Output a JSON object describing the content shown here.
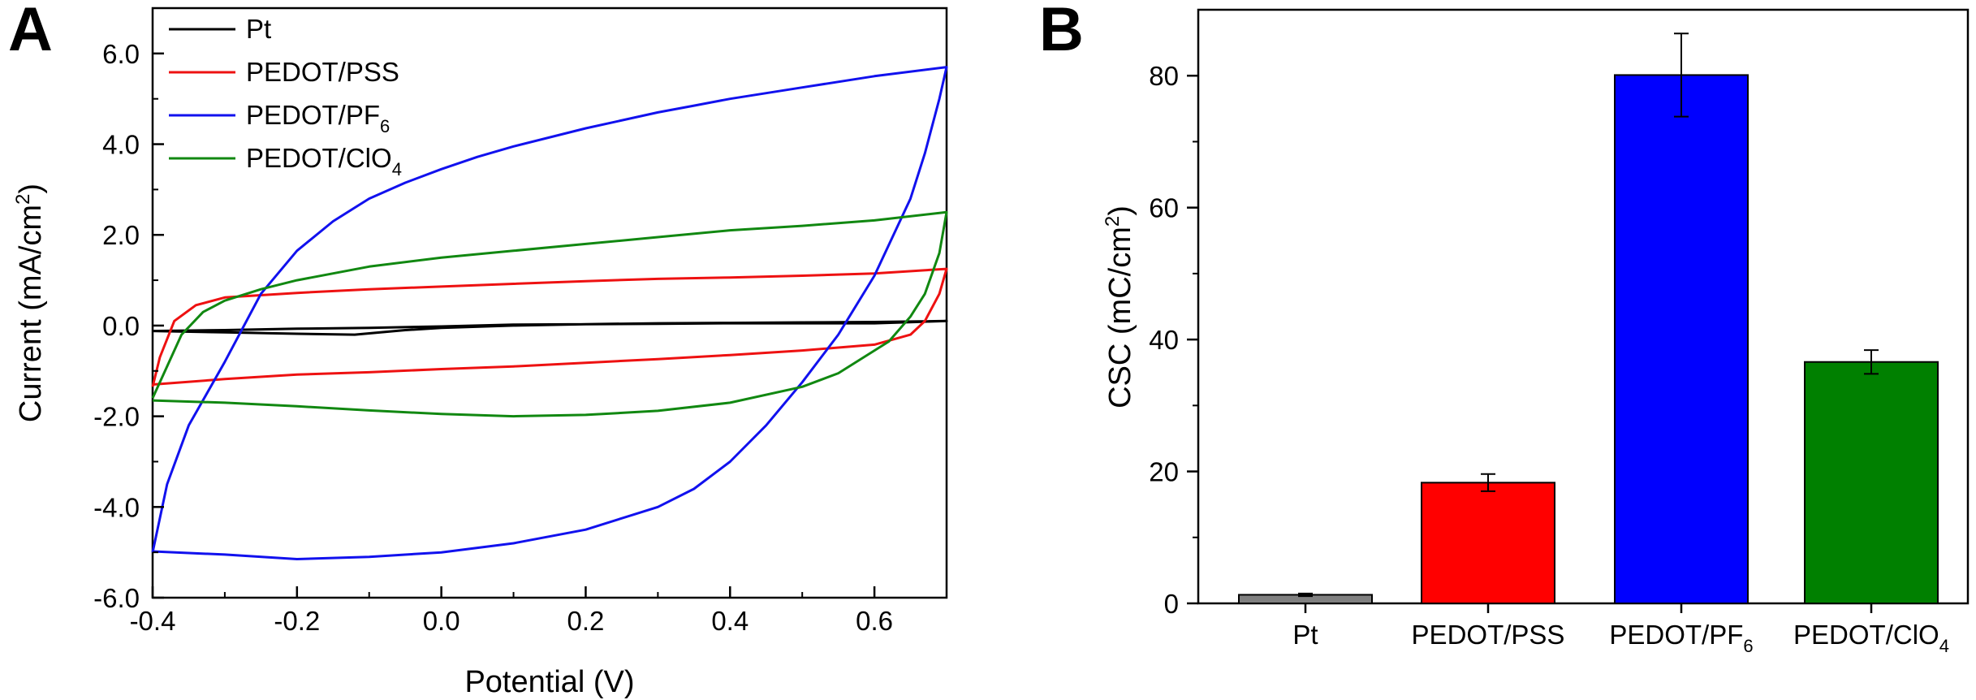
{
  "panels": {
    "a": {
      "letter": "A"
    },
    "b": {
      "letter": "B"
    }
  },
  "chart_data": [
    {
      "type": "line",
      "title": "",
      "xlabel": "Potential (V)",
      "ylabel": {
        "main": "Current (mA/cm",
        "sup": "2",
        "end": ")"
      },
      "xlim": [
        -0.4,
        0.7
      ],
      "ylim": [
        -6.0,
        7.0
      ],
      "xticks": [
        -0.4,
        -0.2,
        0.0,
        0.2,
        0.4,
        0.6
      ],
      "xtick_labels": [
        "-0.4",
        "-0.2",
        "0.0",
        "0.2",
        "0.4",
        "0.6"
      ],
      "yticks": [
        -6.0,
        -4.0,
        -2.0,
        0.0,
        2.0,
        4.0,
        6.0
      ],
      "ytick_labels": [
        "-6.0",
        "-4.0",
        "-2.0",
        "0.0",
        "2.0",
        "4.0",
        "6.0"
      ],
      "legend_position": "top-left",
      "legend": [
        {
          "key": "pt",
          "label": "Pt",
          "sub": ""
        },
        {
          "key": "pss",
          "label": "PEDOT/PSS",
          "sub": ""
        },
        {
          "key": "pf6",
          "label": "PEDOT/PF",
          "sub": "6"
        },
        {
          "key": "clo4",
          "label": "PEDOT/ClO",
          "sub": "4"
        }
      ],
      "series": [
        {
          "key": "pt",
          "name": "Pt",
          "color": "#000000",
          "points": [
            [
              -0.4,
              -0.12
            ],
            [
              -0.3,
              -0.15
            ],
            [
              -0.2,
              -0.18
            ],
            [
              -0.12,
              -0.2
            ],
            [
              -0.05,
              -0.1
            ],
            [
              0.0,
              -0.05
            ],
            [
              0.1,
              0.0
            ],
            [
              0.2,
              0.03
            ],
            [
              0.3,
              0.05
            ],
            [
              0.4,
              0.06
            ],
            [
              0.5,
              0.07
            ],
            [
              0.6,
              0.08
            ],
            [
              0.7,
              0.1
            ],
            [
              0.6,
              0.05
            ],
            [
              0.5,
              0.05
            ],
            [
              0.4,
              0.05
            ],
            [
              0.3,
              0.04
            ],
            [
              0.2,
              0.03
            ],
            [
              0.1,
              0.02
            ],
            [
              0.0,
              -0.02
            ],
            [
              -0.1,
              -0.05
            ],
            [
              -0.2,
              -0.07
            ],
            [
              -0.3,
              -0.1
            ],
            [
              -0.4,
              -0.12
            ]
          ]
        },
        {
          "key": "pss",
          "name": "PEDOT/PSS",
          "color": "#ee1111",
          "points": [
            [
              -0.4,
              -1.35
            ],
            [
              -0.39,
              -0.7
            ],
            [
              -0.37,
              0.1
            ],
            [
              -0.34,
              0.45
            ],
            [
              -0.3,
              0.62
            ],
            [
              -0.2,
              0.72
            ],
            [
              -0.1,
              0.8
            ],
            [
              0.0,
              0.86
            ],
            [
              0.1,
              0.92
            ],
            [
              0.2,
              0.98
            ],
            [
              0.3,
              1.03
            ],
            [
              0.4,
              1.06
            ],
            [
              0.5,
              1.1
            ],
            [
              0.6,
              1.15
            ],
            [
              0.7,
              1.25
            ],
            [
              0.69,
              0.7
            ],
            [
              0.67,
              0.1
            ],
            [
              0.65,
              -0.2
            ],
            [
              0.6,
              -0.42
            ],
            [
              0.5,
              -0.55
            ],
            [
              0.4,
              -0.65
            ],
            [
              0.3,
              -0.74
            ],
            [
              0.2,
              -0.82
            ],
            [
              0.1,
              -0.9
            ],
            [
              0.0,
              -0.96
            ],
            [
              -0.1,
              -1.03
            ],
            [
              -0.2,
              -1.08
            ],
            [
              -0.3,
              -1.18
            ],
            [
              -0.4,
              -1.3
            ]
          ]
        },
        {
          "key": "pf6",
          "name": "PEDOT/PF6",
          "color": "#1111ee",
          "points": [
            [
              -0.4,
              -5.0
            ],
            [
              -0.38,
              -3.5
            ],
            [
              -0.35,
              -2.2
            ],
            [
              -0.3,
              -0.8
            ],
            [
              -0.25,
              0.7
            ],
            [
              -0.2,
              1.65
            ],
            [
              -0.15,
              2.3
            ],
            [
              -0.1,
              2.8
            ],
            [
              -0.05,
              3.15
            ],
            [
              0.0,
              3.45
            ],
            [
              0.05,
              3.72
            ],
            [
              0.1,
              3.95
            ],
            [
              0.2,
              4.35
            ],
            [
              0.3,
              4.7
            ],
            [
              0.35,
              4.85
            ],
            [
              0.4,
              5.0
            ],
            [
              0.5,
              5.25
            ],
            [
              0.6,
              5.5
            ],
            [
              0.7,
              5.7
            ],
            [
              0.69,
              5.0
            ],
            [
              0.67,
              3.8
            ],
            [
              0.65,
              2.8
            ],
            [
              0.6,
              1.1
            ],
            [
              0.55,
              -0.2
            ],
            [
              0.5,
              -1.25
            ],
            [
              0.45,
              -2.2
            ],
            [
              0.4,
              -3.0
            ],
            [
              0.35,
              -3.6
            ],
            [
              0.3,
              -4.0
            ],
            [
              0.2,
              -4.5
            ],
            [
              0.1,
              -4.8
            ],
            [
              0.0,
              -5.0
            ],
            [
              -0.1,
              -5.1
            ],
            [
              -0.2,
              -5.15
            ],
            [
              -0.3,
              -5.05
            ],
            [
              -0.4,
              -4.98
            ]
          ]
        },
        {
          "key": "clo4",
          "name": "PEDOT/ClO4",
          "color": "#118811",
          "points": [
            [
              -0.4,
              -1.6
            ],
            [
              -0.38,
              -0.9
            ],
            [
              -0.36,
              -0.2
            ],
            [
              -0.33,
              0.3
            ],
            [
              -0.3,
              0.55
            ],
            [
              -0.25,
              0.8
            ],
            [
              -0.2,
              1.0
            ],
            [
              -0.1,
              1.3
            ],
            [
              0.0,
              1.5
            ],
            [
              0.1,
              1.65
            ],
            [
              0.2,
              1.8
            ],
            [
              0.3,
              1.95
            ],
            [
              0.4,
              2.1
            ],
            [
              0.5,
              2.2
            ],
            [
              0.6,
              2.32
            ],
            [
              0.7,
              2.5
            ],
            [
              0.69,
              1.6
            ],
            [
              0.67,
              0.7
            ],
            [
              0.65,
              0.2
            ],
            [
              0.62,
              -0.35
            ],
            [
              0.55,
              -1.05
            ],
            [
              0.5,
              -1.35
            ],
            [
              0.4,
              -1.7
            ],
            [
              0.3,
              -1.88
            ],
            [
              0.2,
              -1.97
            ],
            [
              0.1,
              -2.0
            ],
            [
              0.0,
              -1.95
            ],
            [
              -0.1,
              -1.87
            ],
            [
              -0.2,
              -1.78
            ],
            [
              -0.3,
              -1.7
            ],
            [
              -0.4,
              -1.65
            ]
          ]
        }
      ]
    },
    {
      "type": "bar",
      "title": "",
      "xlabel": "",
      "ylabel": {
        "main": "CSC (mC/cm",
        "sup": "2",
        "end": ")"
      },
      "ylim": [
        0,
        90
      ],
      "yticks": [
        0,
        20,
        40,
        60,
        80
      ],
      "ytick_labels": [
        "0",
        "20",
        "40",
        "60",
        "80"
      ],
      "categories": [
        {
          "label": "Pt",
          "sub": ""
        },
        {
          "label": "PEDOT/PSS",
          "sub": ""
        },
        {
          "label": "PEDOT/PF",
          "sub": "6"
        },
        {
          "label": "PEDOT/ClO",
          "sub": "4"
        }
      ],
      "values": [
        1.3,
        18.3,
        80.1,
        36.6
      ],
      "errors": [
        0.2,
        1.3,
        6.3,
        1.8
      ],
      "colors": [
        "#808080",
        "#ff0000",
        "#0000ff",
        "#008000"
      ]
    }
  ]
}
